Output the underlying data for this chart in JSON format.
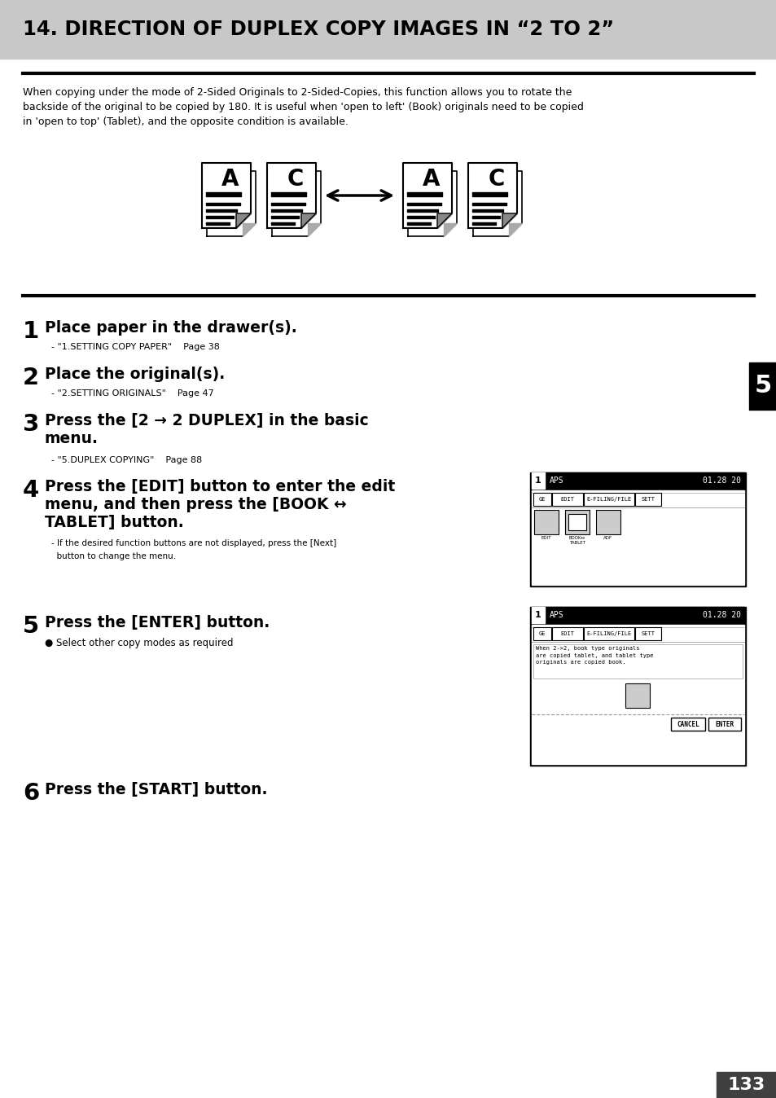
{
  "title": "14. DIRECTION OF DUPLEX COPY IMAGES IN “2 TO 2”",
  "title_bg": "#c8c8c8",
  "page_bg": "#ffffff",
  "body_text_line1": "When copying under the mode of 2-Sided Originals to 2-Sided-Copies, this function allows you to rotate the",
  "body_text_line2": "backside of the original to be copied by 180. It is useful when 'open to left' (Book) originals need to be copied",
  "body_text_line3": "in 'open to top' (Tablet), and the opposite condition is available.",
  "step1_num": "1",
  "step1_bold": "Place paper in the drawer(s).",
  "step1_sub": "- \"1.SETTING COPY PAPER\"    Page 38",
  "step2_num": "2",
  "step2_bold": "Place the original(s).",
  "step2_sub": "- \"2.SETTING ORIGINALS\"    Page 47",
  "step3_num": "3",
  "step3_bold_line1": "Press the [2 → 2 DUPLEX] in the basic",
  "step3_bold_line2": "menu.",
  "step3_sub": "- \"5.DUPLEX COPYING\"    Page 88",
  "step4_num": "4",
  "step4_bold_line1": "Press the [EDIT] button to enter the edit",
  "step4_bold_line2": "menu, and then press the [BOOK ↔",
  "step4_bold_line3": "TABLET] button.",
  "step4_sub_line1": "- If the desired function buttons are not displayed, press the [Next]",
  "step4_sub_line2": "  button to change the menu.",
  "step5_num": "5",
  "step5_bold": "Press the [ENTER] button.",
  "step5_sub": "● Select other copy modes as required",
  "step6_num": "6",
  "step6_bold": "Press the [START] button.",
  "tab_num": "5",
  "page_num": "133"
}
